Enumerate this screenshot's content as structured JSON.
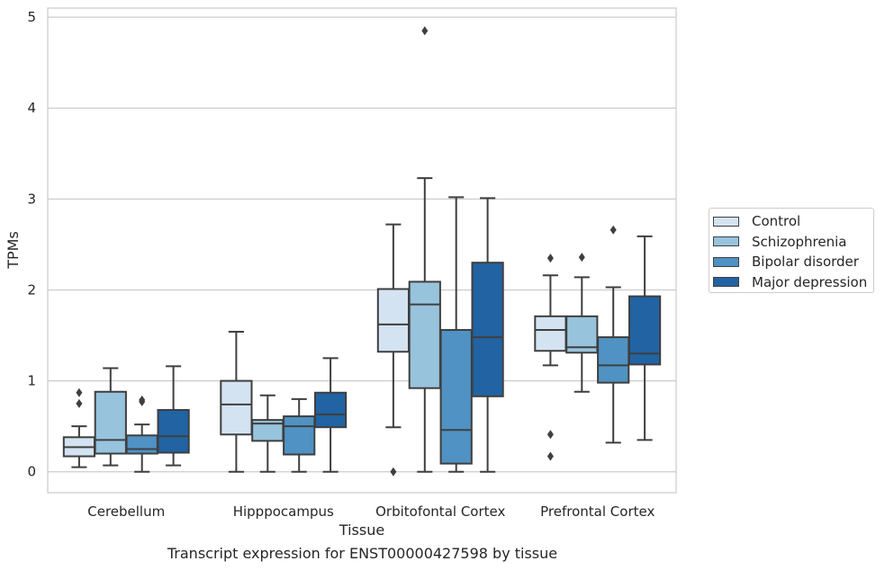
{
  "caption": "Transcript expression for ENST00000427598 by tissue",
  "colors": {
    "Control": "#d4e3f1",
    "Schizophrenia": "#97c3dd",
    "Bipolar disorder": "#4f92c3",
    "Major depression": "#2163a3",
    "grid": "#cccccc",
    "box_edge": "#3f3f3f"
  },
  "chart_data": {
    "type": "box",
    "title": "",
    "xlabel": "Tissue",
    "ylabel": "TPMs",
    "ylim": [
      -0.23,
      5.1
    ],
    "yticks": [
      0,
      1,
      2,
      3,
      4,
      5
    ],
    "grid": true,
    "legend_position": "right",
    "categories": [
      "Cerebellum",
      "Hipppocampus",
      "Orbitofontal Cortex",
      "Prefrontal Cortex"
    ],
    "series": [
      {
        "name": "Control",
        "boxes": [
          {
            "whisker_low": 0.05,
            "q1": 0.17,
            "median": 0.27,
            "q3": 0.38,
            "whisker_high": 0.5,
            "outliers": [
              0.75,
              0.87
            ]
          },
          {
            "whisker_low": 0.0,
            "q1": 0.41,
            "median": 0.74,
            "q3": 1.0,
            "whisker_high": 1.54,
            "outliers": []
          },
          {
            "whisker_low": 0.49,
            "q1": 1.32,
            "median": 1.62,
            "q3": 2.01,
            "whisker_high": 2.72,
            "outliers": [
              0.0
            ]
          },
          {
            "whisker_low": 1.17,
            "q1": 1.33,
            "median": 1.56,
            "q3": 1.71,
            "whisker_high": 2.16,
            "outliers": [
              0.17,
              0.41,
              2.35
            ]
          }
        ]
      },
      {
        "name": "Schizophrenia",
        "boxes": [
          {
            "whisker_low": 0.07,
            "q1": 0.2,
            "median": 0.35,
            "q3": 0.88,
            "whisker_high": 1.14,
            "outliers": []
          },
          {
            "whisker_low": 0.0,
            "q1": 0.34,
            "median": 0.53,
            "q3": 0.57,
            "whisker_high": 0.84,
            "outliers": []
          },
          {
            "whisker_low": 0.0,
            "q1": 0.92,
            "median": 1.84,
            "q3": 2.09,
            "whisker_high": 3.23,
            "outliers": [
              4.85
            ]
          },
          {
            "whisker_low": 0.88,
            "q1": 1.31,
            "median": 1.37,
            "q3": 1.71,
            "whisker_high": 2.14,
            "outliers": [
              2.36
            ]
          }
        ]
      },
      {
        "name": "Bipolar disorder",
        "boxes": [
          {
            "whisker_low": 0.0,
            "q1": 0.2,
            "median": 0.25,
            "q3": 0.4,
            "whisker_high": 0.52,
            "outliers": [
              0.77,
              0.79
            ]
          },
          {
            "whisker_low": 0.0,
            "q1": 0.19,
            "median": 0.5,
            "q3": 0.61,
            "whisker_high": 0.8,
            "outliers": []
          },
          {
            "whisker_low": 0.0,
            "q1": 0.09,
            "median": 0.46,
            "q3": 1.56,
            "whisker_high": 3.02,
            "outliers": []
          },
          {
            "whisker_low": 0.32,
            "q1": 0.98,
            "median": 1.17,
            "q3": 1.48,
            "whisker_high": 2.03,
            "outliers": [
              2.66
            ]
          }
        ]
      },
      {
        "name": "Major depression",
        "boxes": [
          {
            "whisker_low": 0.07,
            "q1": 0.21,
            "median": 0.39,
            "q3": 0.68,
            "whisker_high": 1.16,
            "outliers": []
          },
          {
            "whisker_low": 0.0,
            "q1": 0.49,
            "median": 0.63,
            "q3": 0.87,
            "whisker_high": 1.25,
            "outliers": []
          },
          {
            "whisker_low": 0.0,
            "q1": 0.83,
            "median": 1.48,
            "q3": 2.3,
            "whisker_high": 3.01,
            "outliers": []
          },
          {
            "whisker_low": 0.35,
            "q1": 1.18,
            "median": 1.3,
            "q3": 1.93,
            "whisker_high": 2.59,
            "outliers": []
          }
        ]
      }
    ]
  }
}
